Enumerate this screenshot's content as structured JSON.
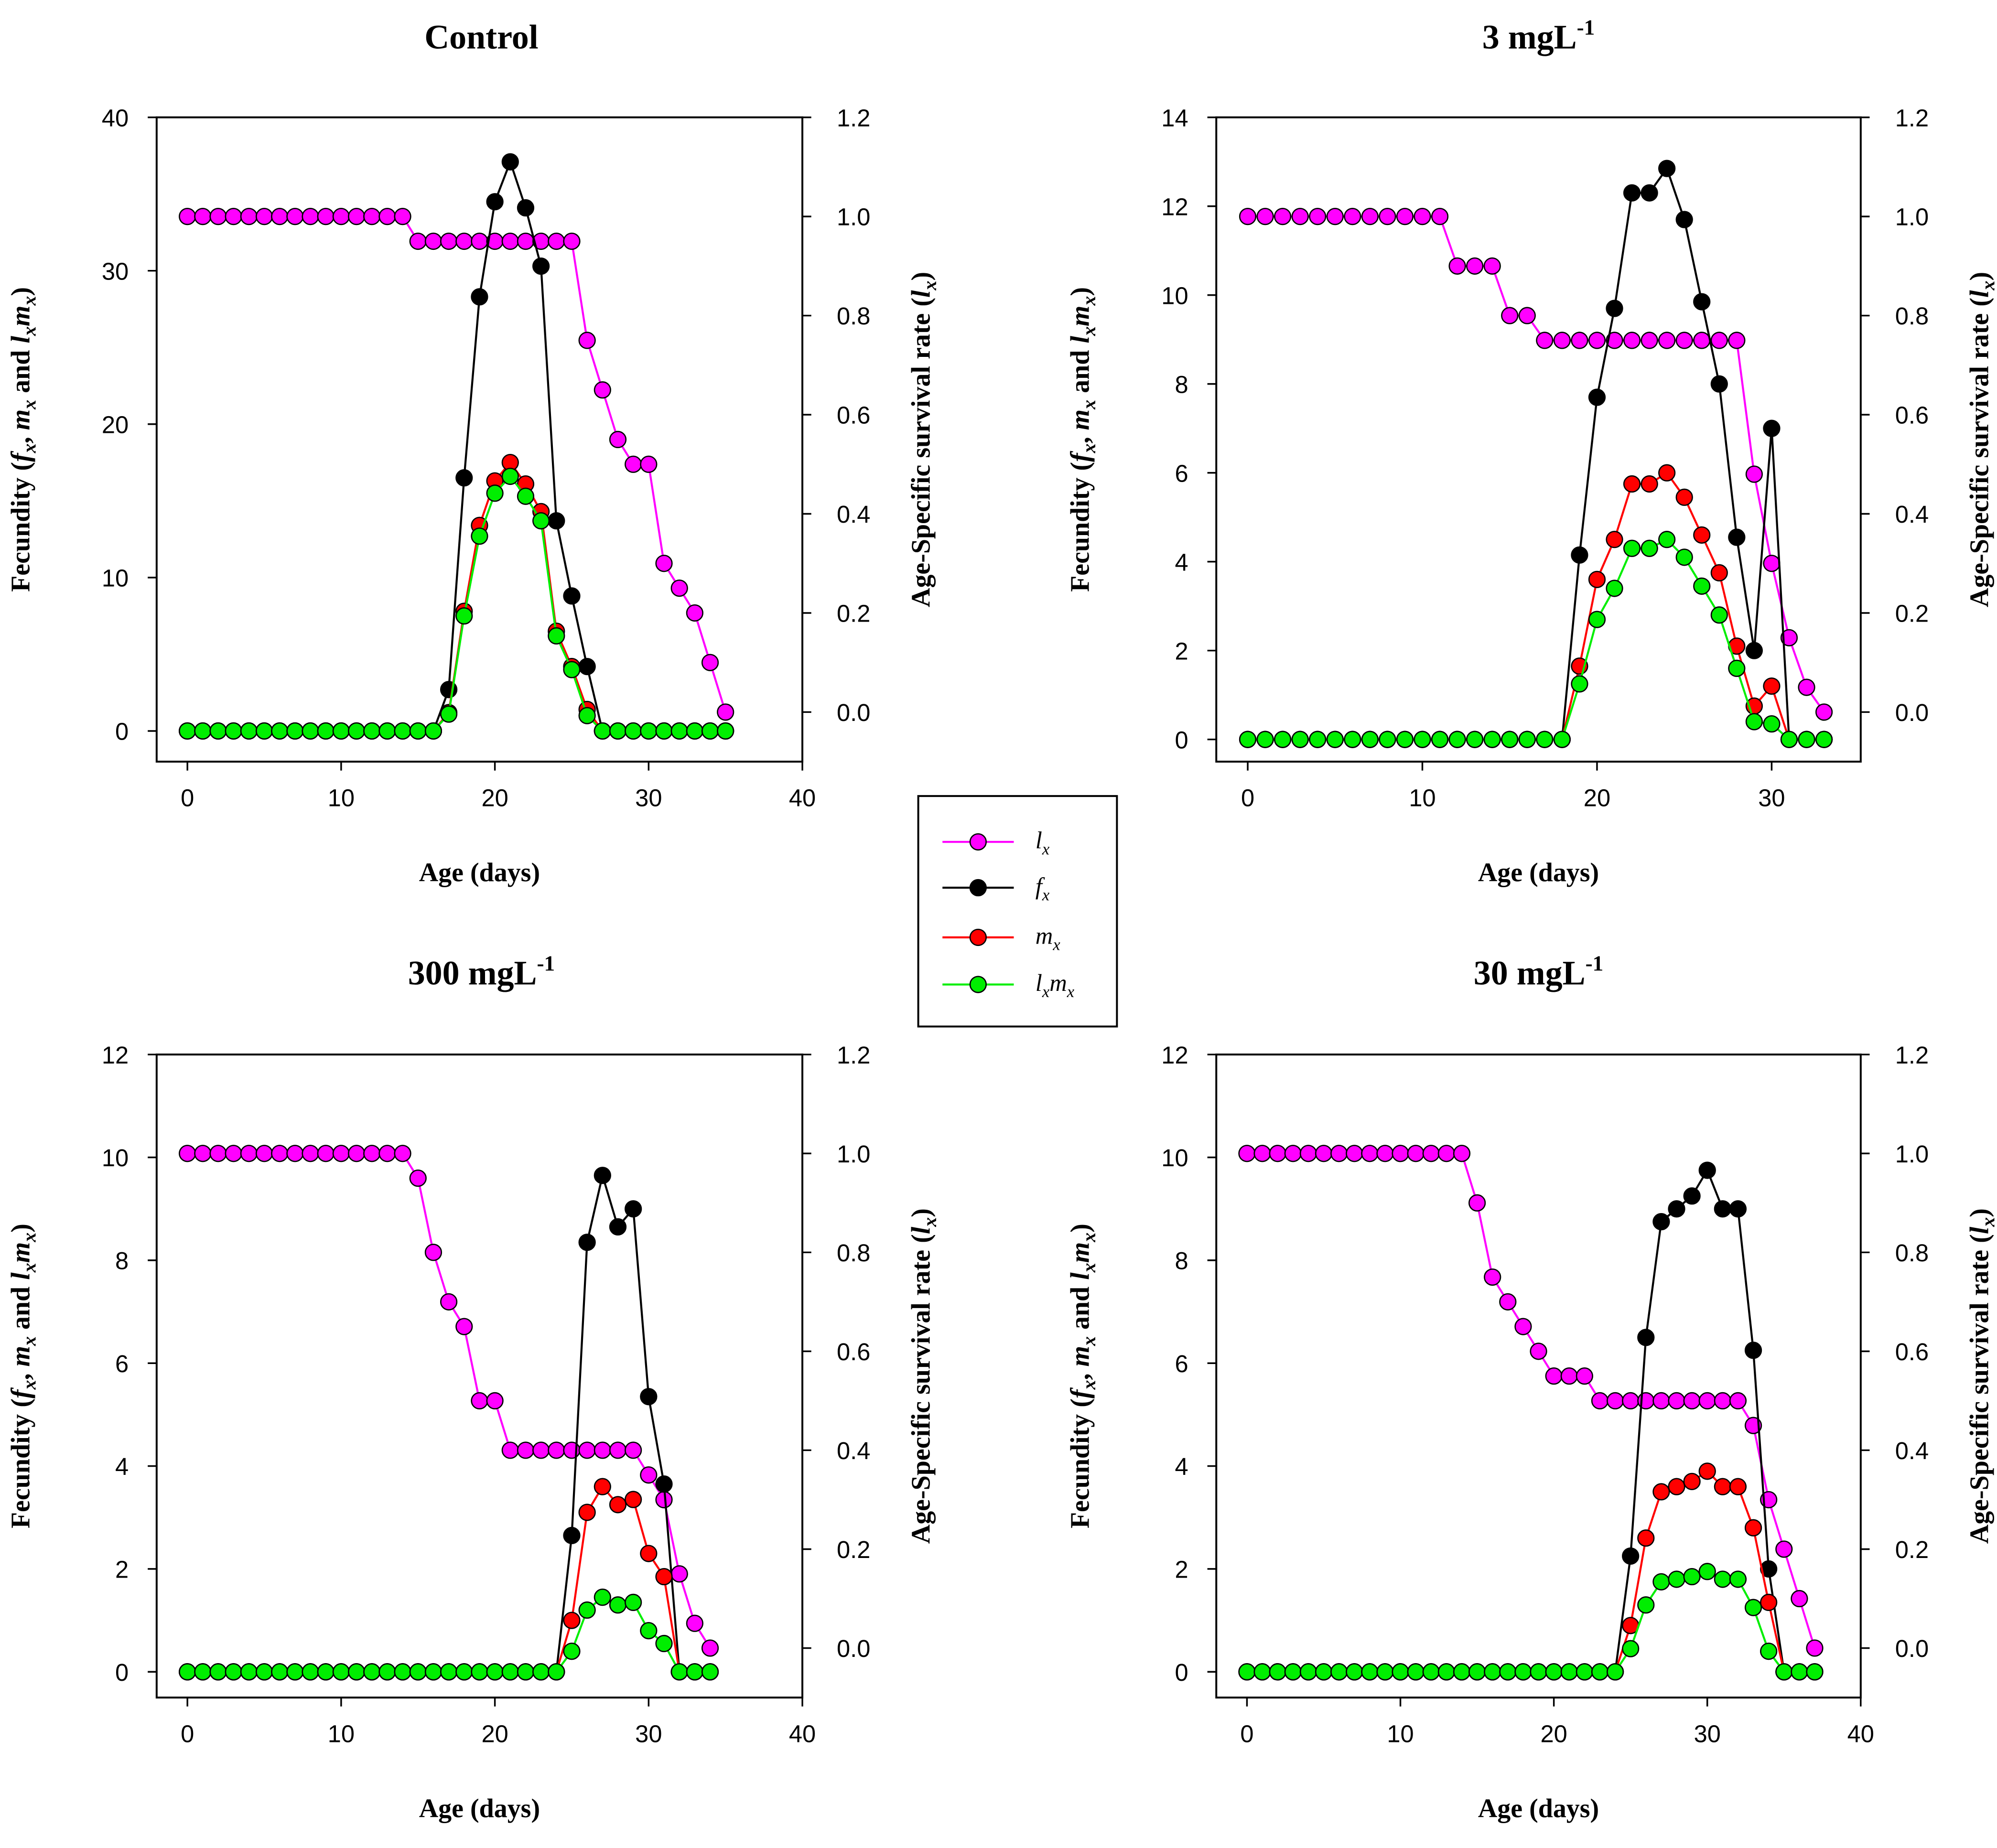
{
  "legend": {
    "entries": [
      {
        "key": "lx",
        "label": "l",
        "sub": "x",
        "color": "#ff00ff"
      },
      {
        "key": "fx",
        "label": "f",
        "sub": "x",
        "color": "#000000"
      },
      {
        "key": "mx",
        "label": "m",
        "sub": "x",
        "color": "#ff0000"
      },
      {
        "key": "lxmx",
        "label": "l",
        "sub": "x",
        "label2": "m",
        "sub2": "x",
        "color": "#00ee00"
      }
    ]
  },
  "labels": {
    "xlabel": "Age (days)",
    "ylabel_left_pre": "Fecundity (",
    "f": "f",
    "m": "m",
    "l": "l",
    "x": "x",
    "comma": ", ",
    "and": " and ",
    "close": ")",
    "ylabel_right_pre": "Age-Specific survival rate (",
    "unit": " mgL",
    "exp": "-1"
  },
  "chart_data": [
    {
      "type": "line",
      "title": "Control",
      "title_dose": "",
      "xlim": [
        -2,
        40
      ],
      "xticks": [
        0,
        10,
        20,
        30,
        40
      ],
      "ylim_left": [
        -2,
        40
      ],
      "yticks_left": [
        0,
        10,
        20,
        30,
        40
      ],
      "ylim_right": [
        -0.1,
        1.2
      ],
      "yticks_right": [
        "0.0",
        "0.2",
        "0.4",
        "0.6",
        "0.8",
        "1.0",
        "1.2"
      ],
      "x": [
        0,
        1,
        2,
        3,
        4,
        5,
        6,
        7,
        8,
        9,
        10,
        11,
        12,
        13,
        14,
        15,
        16,
        17,
        18,
        19,
        20,
        21,
        22,
        23,
        24,
        25,
        26,
        27,
        28,
        29,
        30,
        31,
        32,
        33,
        34,
        35
      ],
      "lx": [
        1,
        1,
        1,
        1,
        1,
        1,
        1,
        1,
        1,
        1,
        1,
        1,
        1,
        1,
        1,
        0.95,
        0.95,
        0.95,
        0.95,
        0.95,
        0.95,
        0.95,
        0.95,
        0.95,
        0.95,
        0.95,
        0.75,
        0.65,
        0.55,
        0.5,
        0.5,
        0.3,
        0.25,
        0.2,
        0.1,
        0.0
      ],
      "fx": [
        0,
        0,
        0,
        0,
        0,
        0,
        0,
        0,
        0,
        0,
        0,
        0,
        0,
        0,
        0,
        0,
        0,
        2.7,
        16.5,
        28.3,
        34.5,
        37.1,
        34.1,
        30.3,
        13.7,
        8.8,
        4.2,
        0,
        0,
        0,
        0,
        0,
        0,
        0,
        0,
        0
      ],
      "mx": [
        0,
        0,
        0,
        0,
        0,
        0,
        0,
        0,
        0,
        0,
        0,
        0,
        0,
        0,
        0,
        0,
        0,
        1.2,
        7.8,
        13.4,
        16.3,
        17.5,
        16.1,
        14.3,
        6.5,
        4.2,
        1.4,
        0,
        0,
        0,
        0,
        0,
        0,
        0,
        0,
        0
      ],
      "lxmx": [
        0,
        0,
        0,
        0,
        0,
        0,
        0,
        0,
        0,
        0,
        0,
        0,
        0,
        0,
        0,
        0,
        0,
        1.1,
        7.5,
        12.7,
        15.5,
        16.6,
        15.3,
        13.7,
        6.2,
        4.0,
        1.0,
        0,
        0,
        0,
        0,
        0,
        0,
        0,
        0,
        0
      ]
    },
    {
      "type": "line",
      "title": "3",
      "title_dose": "3",
      "xlim": [
        -1.8,
        35.1
      ],
      "xticks": [
        0,
        10,
        20,
        30
      ],
      "ylim_left": [
        -0.5,
        14
      ],
      "yticks_left": [
        0,
        2,
        4,
        6,
        8,
        10,
        12,
        14
      ],
      "ylim_right": [
        -0.1,
        1.2
      ],
      "yticks_right": [
        "0.0",
        "0.2",
        "0.4",
        "0.6",
        "0.8",
        "1.0",
        "1.2"
      ],
      "x": [
        0,
        1,
        2,
        3,
        4,
        5,
        6,
        7,
        8,
        9,
        10,
        11,
        12,
        13,
        14,
        15,
        16,
        17,
        18,
        19,
        20,
        21,
        22,
        23,
        24,
        25,
        26,
        27,
        28,
        29,
        30,
        31,
        32,
        33
      ],
      "lx": [
        1,
        1,
        1,
        1,
        1,
        1,
        1,
        1,
        1,
        1,
        1,
        1,
        0.9,
        0.9,
        0.9,
        0.8,
        0.8,
        0.75,
        0.75,
        0.75,
        0.75,
        0.75,
        0.75,
        0.75,
        0.75,
        0.75,
        0.75,
        0.75,
        0.75,
        0.48,
        0.3,
        0.15,
        0.05,
        0.0
      ],
      "fx": [
        0,
        0,
        0,
        0,
        0,
        0,
        0,
        0,
        0,
        0,
        0,
        0,
        0,
        0,
        0,
        0,
        0,
        0,
        0,
        4.15,
        7.7,
        9.7,
        12.3,
        12.3,
        12.85,
        11.7,
        9.85,
        8.0,
        4.55,
        2.0,
        7.0,
        0,
        0,
        0
      ],
      "mx": [
        0,
        0,
        0,
        0,
        0,
        0,
        0,
        0,
        0,
        0,
        0,
        0,
        0,
        0,
        0,
        0,
        0,
        0,
        0,
        1.65,
        3.6,
        4.5,
        5.75,
        5.75,
        6.0,
        5.45,
        4.6,
        3.75,
        2.1,
        0.75,
        1.2,
        0,
        0,
        0
      ],
      "lxmx": [
        0,
        0,
        0,
        0,
        0,
        0,
        0,
        0,
        0,
        0,
        0,
        0,
        0,
        0,
        0,
        0,
        0,
        0,
        0,
        1.25,
        2.7,
        3.4,
        4.3,
        4.3,
        4.5,
        4.1,
        3.45,
        2.8,
        1.6,
        0.4,
        0.35,
        0,
        0,
        0
      ]
    },
    {
      "type": "line",
      "title": "300",
      "title_dose": "300",
      "xlim": [
        -2,
        40
      ],
      "xticks": [
        0,
        10,
        20,
        30,
        40
      ],
      "ylim_left": [
        -0.5,
        12
      ],
      "yticks_left": [
        0,
        2,
        4,
        6,
        8,
        10,
        12
      ],
      "ylim_right": [
        -0.1,
        1.2
      ],
      "yticks_right": [
        "0.0",
        "0.2",
        "0.4",
        "0.6",
        "0.8",
        "1.0",
        "1.2"
      ],
      "x": [
        0,
        1,
        2,
        3,
        4,
        5,
        6,
        7,
        8,
        9,
        10,
        11,
        12,
        13,
        14,
        15,
        16,
        17,
        18,
        19,
        20,
        21,
        22,
        23,
        24,
        25,
        26,
        27,
        28,
        29,
        30,
        31,
        32,
        33,
        34
      ],
      "lx": [
        1,
        1,
        1,
        1,
        1,
        1,
        1,
        1,
        1,
        1,
        1,
        1,
        1,
        1,
        1,
        0.95,
        0.8,
        0.7,
        0.65,
        0.5,
        0.5,
        0.4,
        0.4,
        0.4,
        0.4,
        0.4,
        0.4,
        0.4,
        0.4,
        0.4,
        0.35,
        0.3,
        0.15,
        0.05,
        0.0
      ],
      "fx": [
        0,
        0,
        0,
        0,
        0,
        0,
        0,
        0,
        0,
        0,
        0,
        0,
        0,
        0,
        0,
        0,
        0,
        0,
        0,
        0,
        0,
        0,
        0,
        0,
        0,
        2.65,
        8.35,
        9.65,
        8.65,
        9.0,
        5.35,
        3.65,
        0,
        0,
        0
      ],
      "mx": [
        0,
        0,
        0,
        0,
        0,
        0,
        0,
        0,
        0,
        0,
        0,
        0,
        0,
        0,
        0,
        0,
        0,
        0,
        0,
        0,
        0,
        0,
        0,
        0,
        0,
        1.0,
        3.1,
        3.6,
        3.25,
        3.35,
        2.3,
        1.85,
        0,
        0,
        0
      ],
      "lxmx": [
        0,
        0,
        0,
        0,
        0,
        0,
        0,
        0,
        0,
        0,
        0,
        0,
        0,
        0,
        0,
        0,
        0,
        0,
        0,
        0,
        0,
        0,
        0,
        0,
        0,
        0.4,
        1.2,
        1.45,
        1.3,
        1.35,
        0.8,
        0.55,
        0,
        0,
        0
      ]
    },
    {
      "type": "line",
      "title": "30",
      "title_dose": "30",
      "xlim": [
        -2,
        40
      ],
      "xticks": [
        0,
        10,
        20,
        30,
        40
      ],
      "ylim_left": [
        -0.5,
        12
      ],
      "yticks_left": [
        0,
        2,
        4,
        6,
        8,
        10,
        12
      ],
      "ylim_right": [
        -0.1,
        1.2
      ],
      "yticks_right": [
        "0.0",
        "0.2",
        "0.4",
        "0.6",
        "0.8",
        "1.0",
        "1.2"
      ],
      "x": [
        0,
        1,
        2,
        3,
        4,
        5,
        6,
        7,
        8,
        9,
        10,
        11,
        12,
        13,
        14,
        15,
        16,
        17,
        18,
        19,
        20,
        21,
        22,
        23,
        24,
        25,
        26,
        27,
        28,
        29,
        30,
        31,
        32,
        33,
        34,
        35,
        36,
        37
      ],
      "lx": [
        1,
        1,
        1,
        1,
        1,
        1,
        1,
        1,
        1,
        1,
        1,
        1,
        1,
        1,
        1,
        0.9,
        0.75,
        0.7,
        0.65,
        0.6,
        0.55,
        0.55,
        0.55,
        0.5,
        0.5,
        0.5,
        0.5,
        0.5,
        0.5,
        0.5,
        0.5,
        0.5,
        0.5,
        0.45,
        0.3,
        0.2,
        0.1,
        0.0
      ],
      "fx": [
        0,
        0,
        0,
        0,
        0,
        0,
        0,
        0,
        0,
        0,
        0,
        0,
        0,
        0,
        0,
        0,
        0,
        0,
        0,
        0,
        0,
        0,
        0,
        0,
        0,
        2.25,
        6.5,
        8.75,
        9.0,
        9.25,
        9.75,
        9.0,
        9.0,
        6.25,
        2.0,
        0,
        0,
        0
      ],
      "mx": [
        0,
        0,
        0,
        0,
        0,
        0,
        0,
        0,
        0,
        0,
        0,
        0,
        0,
        0,
        0,
        0,
        0,
        0,
        0,
        0,
        0,
        0,
        0,
        0,
        0,
        0.9,
        2.6,
        3.5,
        3.6,
        3.7,
        3.9,
        3.6,
        3.6,
        2.8,
        1.35,
        0,
        0,
        0
      ],
      "lxmx": [
        0,
        0,
        0,
        0,
        0,
        0,
        0,
        0,
        0,
        0,
        0,
        0,
        0,
        0,
        0,
        0,
        0,
        0,
        0,
        0,
        0,
        0,
        0,
        0,
        0,
        0.45,
        1.3,
        1.75,
        1.8,
        1.85,
        1.95,
        1.8,
        1.8,
        1.25,
        0.4,
        0,
        0,
        0
      ]
    }
  ]
}
